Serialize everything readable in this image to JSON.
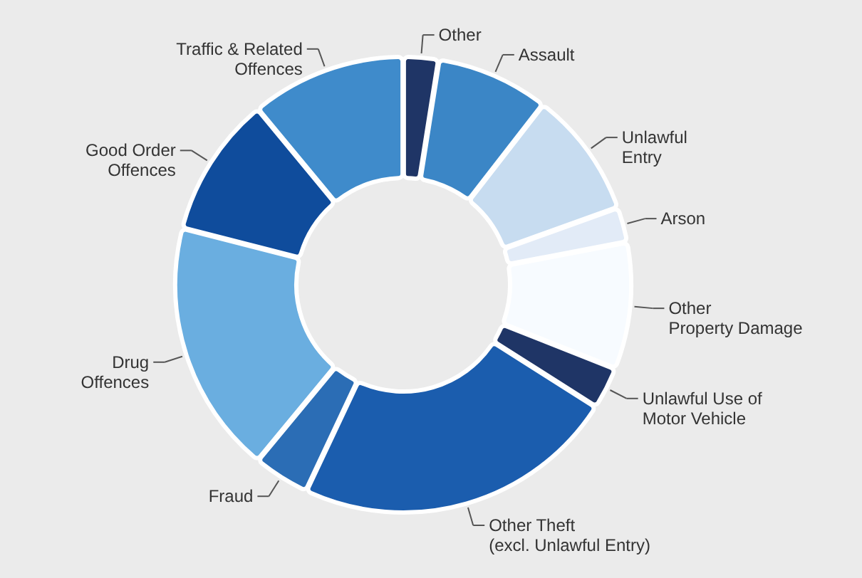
{
  "chart_data": {
    "type": "donut",
    "categories": [
      "Other",
      "Assault",
      "Unlawful\nEntry",
      "Arson",
      "Other\nProperty Damage",
      "Unlawful Use of\nMotor Vehicle",
      "Other Theft\n(excl. Unlawful Entry)",
      "Fraud",
      "Drug\nOffences",
      "Good Order\nOffences",
      "Traffic & Related\nOffences"
    ],
    "values": [
      2.5,
      8,
      9,
      2.5,
      9,
      3,
      23,
      4,
      18,
      10,
      11
    ],
    "colors": [
      "#1f3566",
      "#3b86c6",
      "#c7dcf0",
      "#e2ebf7",
      "#f7fbff",
      "#1f3566",
      "#1b5dae",
      "#2b6db5",
      "#6aaee0",
      "#0f4c9c",
      "#3f8bcb"
    ]
  }
}
